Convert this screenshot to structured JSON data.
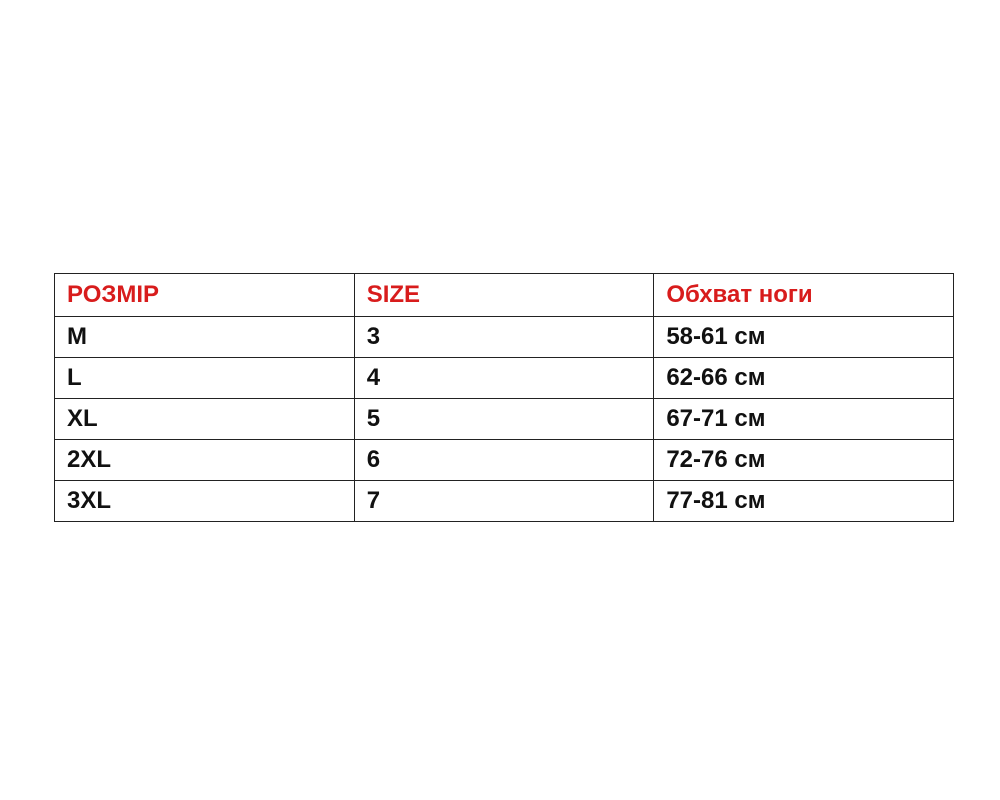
{
  "header": [
    "РОЗМІР",
    "SIZE",
    "Обхват ноги"
  ],
  "rows": [
    [
      "M",
      "3",
      "58-61 см"
    ],
    [
      "L",
      "4",
      "62-66 см"
    ],
    [
      "XL",
      "5",
      "67-71 см"
    ],
    [
      "2XL",
      "6",
      "72-76 см"
    ],
    [
      "3XL",
      "7",
      "77-81 см"
    ]
  ],
  "colors": {
    "header_text": "#d81c1c",
    "body_text": "#111111",
    "border": "#222222"
  }
}
